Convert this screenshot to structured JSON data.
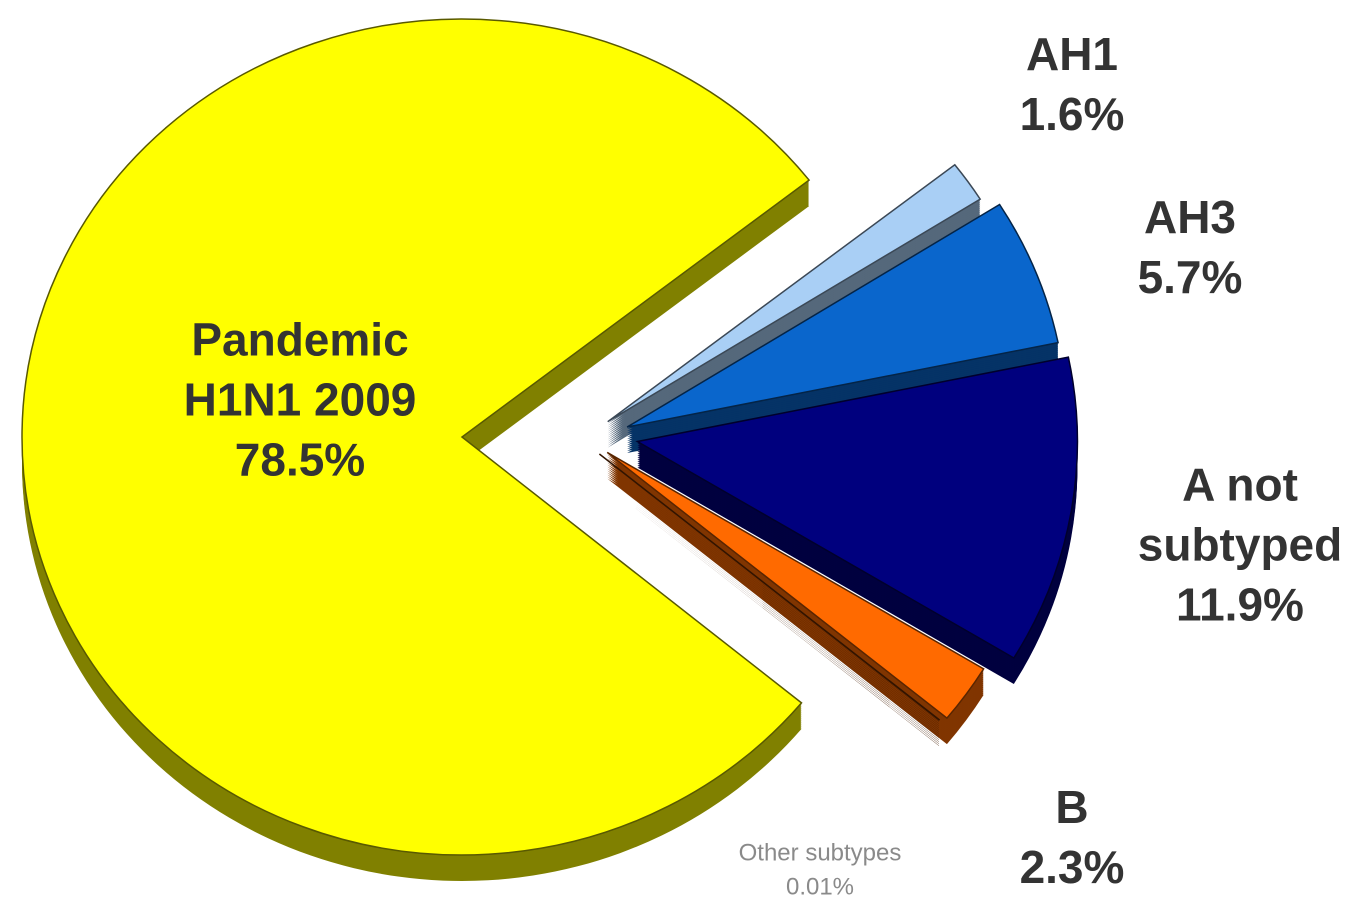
{
  "chart_data": {
    "type": "pie",
    "categories": [
      "Pandemic H1N1 2009",
      "AH1",
      "AH3",
      "A not subtyped",
      "B",
      "Other subtypes"
    ],
    "values": [
      78.5,
      1.6,
      5.7,
      11.9,
      2.3,
      0.01
    ],
    "value_labels": [
      "78.5%",
      "1.6%",
      "5.7%",
      "11.9%",
      "2.3%",
      "0.01%"
    ],
    "colors": [
      "#ffff00",
      "#a9cff5",
      "#0a66cc",
      "#00007e",
      "#ff6a00",
      "#8b3a00"
    ]
  }
}
